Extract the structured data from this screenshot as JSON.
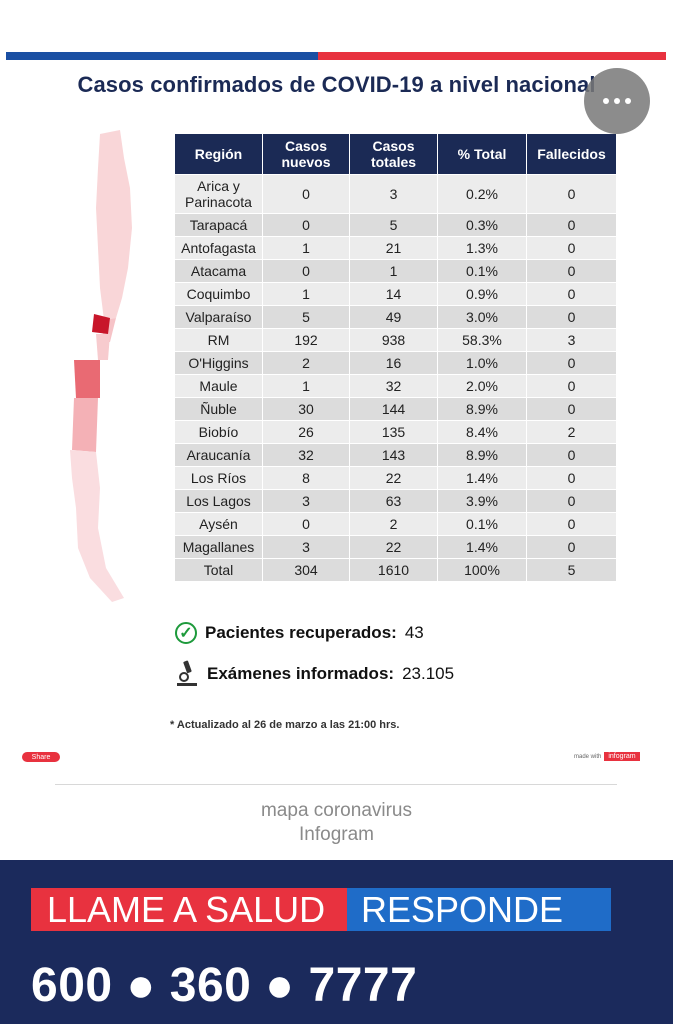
{
  "header": {
    "title": "Casos confirmados de COVID-19 a nivel nacional",
    "more_icon": "more-horizontal-icon"
  },
  "table": {
    "columns": [
      "Región",
      "Casos nuevos",
      "Casos totales",
      "% Total",
      "Fallecidos"
    ],
    "rows": [
      [
        "Arica y Parinacota",
        "0",
        "3",
        "0.2%",
        "0"
      ],
      [
        "Tarapacá",
        "0",
        "5",
        "0.3%",
        "0"
      ],
      [
        "Antofagasta",
        "1",
        "21",
        "1.3%",
        "0"
      ],
      [
        "Atacama",
        "0",
        "1",
        "0.1%",
        "0"
      ],
      [
        "Coquimbo",
        "1",
        "14",
        "0.9%",
        "0"
      ],
      [
        "Valparaíso",
        "5",
        "49",
        "3.0%",
        "0"
      ],
      [
        "RM",
        "192",
        "938",
        "58.3%",
        "3"
      ],
      [
        "O'Higgins",
        "2",
        "16",
        "1.0%",
        "0"
      ],
      [
        "Maule",
        "1",
        "32",
        "2.0%",
        "0"
      ],
      [
        "Ñuble",
        "30",
        "144",
        "8.9%",
        "0"
      ],
      [
        "Biobío",
        "26",
        "135",
        "8.4%",
        "2"
      ],
      [
        "Araucanía",
        "32",
        "143",
        "8.9%",
        "0"
      ],
      [
        "Los Ríos",
        "8",
        "22",
        "1.4%",
        "0"
      ],
      [
        "Los Lagos",
        "3",
        "63",
        "3.9%",
        "0"
      ],
      [
        "Aysén",
        "0",
        "2",
        "0.1%",
        "0"
      ],
      [
        "Magallanes",
        "3",
        "22",
        "1.4%",
        "0"
      ],
      [
        "Total",
        "304",
        "1610",
        "100%",
        "5"
      ]
    ]
  },
  "stats": {
    "recovered_label": "Pacientes recuperados:",
    "recovered_value": "43",
    "exams_label": "Exámenes informados:",
    "exams_value": "23.105"
  },
  "footnote": "* Actualizado al 26 de marzo a las 21:00 hrs.",
  "share_label": "Share",
  "made_with": {
    "prefix": "made with",
    "brand": "infogram"
  },
  "caption": {
    "line1": "mapa coronavirus",
    "line2": "Infogram"
  },
  "banner": {
    "left_text": "LLAME A SALUD",
    "right_text": "RESPONDE",
    "phone": "600 ● 360 ● 7777"
  },
  "colors": {
    "navy": "#1b2a55",
    "red": "#e8323f",
    "blue": "#1a4fa3",
    "map_light": "#f6c8cb",
    "map_dark": "#c8162a"
  }
}
